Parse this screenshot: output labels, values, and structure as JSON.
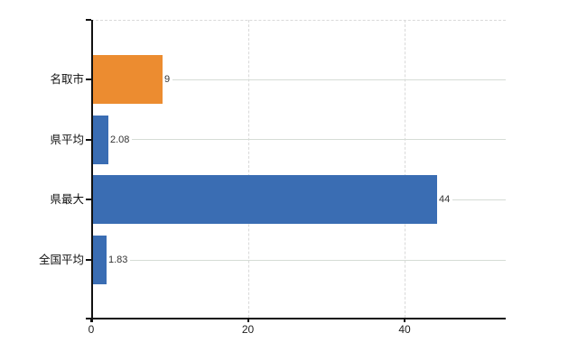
{
  "chart_data": {
    "type": "bar",
    "orientation": "horizontal",
    "title": "",
    "xlabel": "",
    "ylabel": "",
    "categories": [
      "名取市",
      "県平均",
      "県最大",
      "全国平均"
    ],
    "values": [
      9,
      2.08,
      44,
      1.83
    ],
    "value_labels": [
      "9",
      "2.08",
      "44",
      "1.83"
    ],
    "bar_colors": [
      "#ec8c30",
      "#3a6db3",
      "#3a6db3",
      "#3a6db3"
    ],
    "x_ticks": [
      0,
      20,
      40
    ],
    "x_tick_labels": [
      "0",
      "20",
      "40"
    ],
    "xlim": [
      0,
      53
    ],
    "grid": true,
    "gridline_style": "dashed",
    "legend": false
  },
  "colors": {
    "orange_bar": "#ec8c30",
    "blue_bar": "#3a6db3",
    "gridline": "#d9d9d9",
    "leader_line": "#d6dcd6",
    "axis": "#111111",
    "text": "#222222"
  }
}
